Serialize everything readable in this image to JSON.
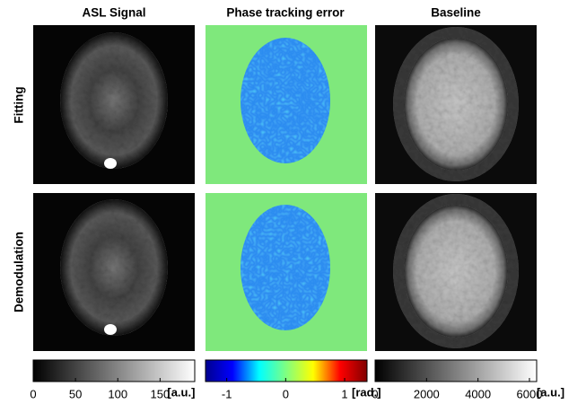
{
  "columns": [
    "ASL Signal",
    "Phase tracking error",
    "Baseline"
  ],
  "rows": [
    "Fitting",
    "Demodulation"
  ],
  "colorbars": [
    {
      "lim": [
        0,
        191
      ],
      "ticks": [
        0,
        50,
        100,
        150
      ],
      "unit": "[a.u.]",
      "colors": [
        "#000000",
        "#ffffff"
      ]
    },
    {
      "lim": [
        -1.36,
        1.38
      ],
      "ticks": [
        -1,
        0,
        1
      ],
      "unit": "[rad.]",
      "colors": [
        "#00008f",
        "#0000ff",
        "#00ffff",
        "#80ff80",
        "#ffff00",
        "#ff0000",
        "#800000"
      ]
    },
    {
      "lim": [
        0,
        6280
      ],
      "ticks": [
        0,
        2000,
        4000,
        6000
      ],
      "unit": "[a.u.]",
      "colors": [
        "#000000",
        "#ffffff"
      ]
    }
  ]
}
